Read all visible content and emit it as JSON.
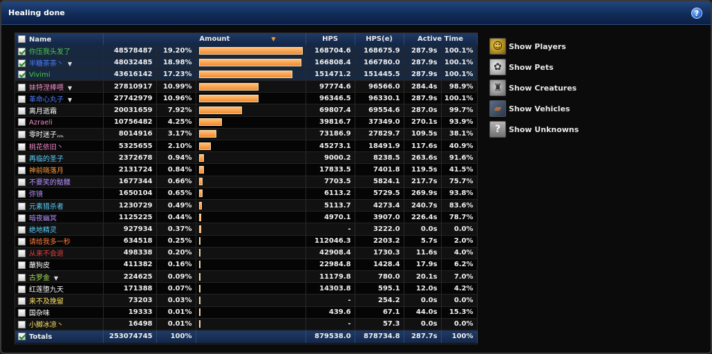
{
  "window": {
    "title": "Healing done",
    "help_icon": "?"
  },
  "columns": {
    "name": "Name",
    "amount": "Amount",
    "hps": "HPS",
    "hpse": "HPS(e)",
    "active_time": "Active Time"
  },
  "rows": [
    {
      "name": "你压我头发了",
      "color": "#4ac94a",
      "checked": true,
      "caret": false,
      "amount": "48578487",
      "pct": "19.20%",
      "fraction": 1.0,
      "hps": "168704.6",
      "hpse": "168675.9",
      "time": "287.9s",
      "active": "100.1%"
    },
    {
      "name": "半糖茶茶丶",
      "color": "#4a7dff",
      "checked": true,
      "caret": true,
      "amount": "48032485",
      "pct": "18.98%",
      "fraction": 0.989,
      "hps": "166808.4",
      "hpse": "166780.0",
      "time": "287.9s",
      "active": "100.1%"
    },
    {
      "name": "Vivimi",
      "color": "#4ac94a",
      "checked": true,
      "caret": false,
      "amount": "43616142",
      "pct": "17.23%",
      "fraction": 0.898,
      "hps": "151471.2",
      "hpse": "151445.5",
      "time": "287.9s",
      "active": "100.1%"
    },
    {
      "name": "妹特涅棒喂",
      "color": "#f088c8",
      "checked": false,
      "caret": true,
      "amount": "27810917",
      "pct": "10.99%",
      "fraction": 0.572,
      "hps": "97774.6",
      "hpse": "96566.0",
      "time": "284.4s",
      "active": "98.9%"
    },
    {
      "name": "革命心丸子",
      "color": "#4a7dff",
      "checked": false,
      "caret": true,
      "amount": "27742979",
      "pct": "10.96%",
      "fraction": 0.571,
      "hps": "96346.5",
      "hpse": "96330.1",
      "time": "287.9s",
      "active": "100.1%"
    },
    {
      "name": "离月逝霜",
      "color": "#ffffff",
      "checked": false,
      "caret": false,
      "amount": "20031659",
      "pct": "7.92%",
      "fraction": 0.412,
      "hps": "69807.4",
      "hpse": "69554.6",
      "time": "287.0s",
      "active": "99.7%"
    },
    {
      "name": "Azraeli",
      "color": "#f088c8",
      "checked": false,
      "caret": false,
      "amount": "10756482",
      "pct": "4.25%",
      "fraction": 0.221,
      "hps": "39816.7",
      "hpse": "37349.0",
      "time": "270.1s",
      "active": "93.9%"
    },
    {
      "name": "零时迷子灬",
      "color": "#ffffff",
      "checked": false,
      "caret": false,
      "amount": "8014916",
      "pct": "3.17%",
      "fraction": 0.165,
      "hps": "73186.9",
      "hpse": "27829.7",
      "time": "109.5s",
      "active": "38.1%"
    },
    {
      "name": "桃花依旧丶",
      "color": "#f088c8",
      "checked": false,
      "caret": false,
      "amount": "5325655",
      "pct": "2.10%",
      "fraction": 0.11,
      "hps": "45273.1",
      "hpse": "18491.9",
      "time": "117.6s",
      "active": "40.9%"
    },
    {
      "name": "再临的圣子",
      "color": "#5ad0ff",
      "checked": false,
      "caret": false,
      "amount": "2372678",
      "pct": "0.94%",
      "fraction": 0.049,
      "hps": "9000.2",
      "hpse": "8238.5",
      "time": "263.6s",
      "active": "91.6%"
    },
    {
      "name": "神前晓落月",
      "color": "#ff9a3c",
      "checked": false,
      "caret": false,
      "amount": "2131724",
      "pct": "0.84%",
      "fraction": 0.044,
      "hps": "17833.5",
      "hpse": "7401.8",
      "time": "119.5s",
      "active": "41.5%"
    },
    {
      "name": "不要笑的骷髅",
      "color": "#b690ff",
      "checked": false,
      "caret": false,
      "amount": "1677344",
      "pct": "0.66%",
      "fraction": 0.035,
      "hps": "7703.5",
      "hpse": "5824.1",
      "time": "217.7s",
      "active": "75.7%"
    },
    {
      "name": "弥镜",
      "color": "#b690ff",
      "checked": false,
      "caret": false,
      "amount": "1650104",
      "pct": "0.65%",
      "fraction": 0.034,
      "hps": "6113.2",
      "hpse": "5729.5",
      "time": "269.9s",
      "active": "93.8%"
    },
    {
      "name": "元素猎杀者",
      "color": "#5ad0ff",
      "checked": false,
      "caret": false,
      "amount": "1230729",
      "pct": "0.49%",
      "fraction": 0.025,
      "hps": "5113.7",
      "hpse": "4273.4",
      "time": "240.7s",
      "active": "83.6%"
    },
    {
      "name": "暗夜幽冥",
      "color": "#b690ff",
      "checked": false,
      "caret": false,
      "amount": "1125225",
      "pct": "0.44%",
      "fraction": 0.023,
      "hps": "4970.1",
      "hpse": "3907.0",
      "time": "226.4s",
      "active": "78.7%"
    },
    {
      "name": "绝地精灵",
      "color": "#5ad0ff",
      "checked": false,
      "caret": false,
      "amount": "927934",
      "pct": "0.37%",
      "fraction": 0.019,
      "hps": "-",
      "hpse": "3222.0",
      "time": "0.0s",
      "active": "0.0%"
    },
    {
      "name": "请给我多一秒",
      "color": "#ff7a3c",
      "checked": false,
      "caret": false,
      "amount": "634518",
      "pct": "0.25%",
      "fraction": 0.013,
      "hps": "112046.3",
      "hpse": "2203.2",
      "time": "5.7s",
      "active": "2.0%"
    },
    {
      "name": "从来不会退",
      "color": "#e04040",
      "checked": false,
      "caret": false,
      "amount": "498338",
      "pct": "0.20%",
      "fraction": 0.01,
      "hps": "42908.4",
      "hpse": "1730.3",
      "time": "11.6s",
      "active": "4.0%"
    },
    {
      "name": "蘸狗皮",
      "color": "#ffffff",
      "checked": false,
      "caret": false,
      "amount": "411382",
      "pct": "0.16%",
      "fraction": 0.008,
      "hps": "22984.8",
      "hpse": "1428.4",
      "time": "17.9s",
      "active": "6.2%"
    },
    {
      "name": "古罗金",
      "color": "#a8e05a",
      "checked": false,
      "caret": true,
      "amount": "224625",
      "pct": "0.09%",
      "fraction": 0.005,
      "hps": "11179.8",
      "hpse": "780.0",
      "time": "20.1s",
      "active": "7.0%"
    },
    {
      "name": "红莲堕九天",
      "color": "#ffffff",
      "checked": false,
      "caret": false,
      "amount": "171388",
      "pct": "0.07%",
      "fraction": 0.004,
      "hps": "14303.8",
      "hpse": "595.1",
      "time": "12.0s",
      "active": "4.2%"
    },
    {
      "name": "来不及挽留",
      "color": "#ffe36a",
      "checked": false,
      "caret": false,
      "amount": "73203",
      "pct": "0.03%",
      "fraction": 0.002,
      "hps": "-",
      "hpse": "254.2",
      "time": "0.0s",
      "active": "0.0%"
    },
    {
      "name": "国杂味",
      "color": "#ffffff",
      "checked": false,
      "caret": false,
      "amount": "19333",
      "pct": "0.01%",
      "fraction": 0.0004,
      "hps": "439.6",
      "hpse": "67.1",
      "time": "44.0s",
      "active": "15.3%"
    },
    {
      "name": "小脚冰凉丶",
      "color": "#ffe36a",
      "checked": false,
      "caret": false,
      "amount": "16498",
      "pct": "0.01%",
      "fraction": 0.0003,
      "hps": "-",
      "hpse": "57.3",
      "time": "0.0s",
      "active": "0.0%"
    }
  ],
  "totals": {
    "label": "Totals",
    "amount": "253074745",
    "pct": "100%",
    "hps": "879538.0",
    "hpse": "878734.8",
    "time": "287.7s",
    "active": "100%"
  },
  "sidebar": {
    "items": [
      {
        "label": "Show Players",
        "icon": "players-icon"
      },
      {
        "label": "Show Pets",
        "icon": "pets-icon"
      },
      {
        "label": "Show Creatures",
        "icon": "creatures-icon"
      },
      {
        "label": "Show Vehicles",
        "icon": "vehicles-icon"
      },
      {
        "label": "Show Unknowns",
        "icon": "unknowns-icon"
      }
    ]
  },
  "colors": {
    "title_bar": "#163360",
    "bar_fill": "#f5a050",
    "header": "#1a3358"
  }
}
